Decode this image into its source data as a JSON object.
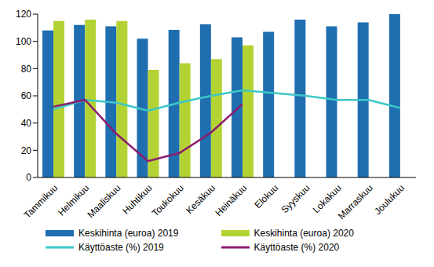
{
  "chart_data": {
    "type": "bar",
    "categories": [
      "Tammikuu",
      "Helmikuu",
      "Maaliskuu",
      "Huhtikuu",
      "Toukokuu",
      "Kesäkuu",
      "Heinäkuu",
      "Elokuu",
      "Syyskuu",
      "Lokakuu",
      "Marraskuu",
      "Joulukuu"
    ],
    "series": [
      {
        "name": "Keskihinta (euroa) 2019",
        "type": "bar",
        "color": "#1f6eb0",
        "values": [
          108,
          112,
          111,
          102,
          108.5,
          112.5,
          103,
          107,
          116,
          111,
          114,
          120
        ]
      },
      {
        "name": "Keskihinta (euroa) 2020",
        "type": "bar",
        "color": "#b3d334",
        "values": [
          115,
          116,
          115,
          79,
          84,
          87,
          97,
          null,
          null,
          null,
          null,
          null
        ]
      },
      {
        "name": "Käyttöaste (%) 2019",
        "type": "line",
        "color": "#3cc8c8",
        "values": [
          50,
          57,
          55,
          49,
          55,
          60,
          64,
          62,
          60,
          57,
          57,
          51
        ]
      },
      {
        "name": "Käyttöaste (%) 2020",
        "type": "line",
        "color": "#8c1b6e",
        "values": [
          52,
          57,
          32,
          12,
          18,
          33,
          54,
          null,
          null,
          null,
          null,
          null
        ]
      }
    ],
    "ylim": [
      0,
      120
    ],
    "yticks": [
      0,
      20,
      40,
      60,
      80,
      100,
      120
    ],
    "grid": false,
    "legend": "bottom"
  }
}
